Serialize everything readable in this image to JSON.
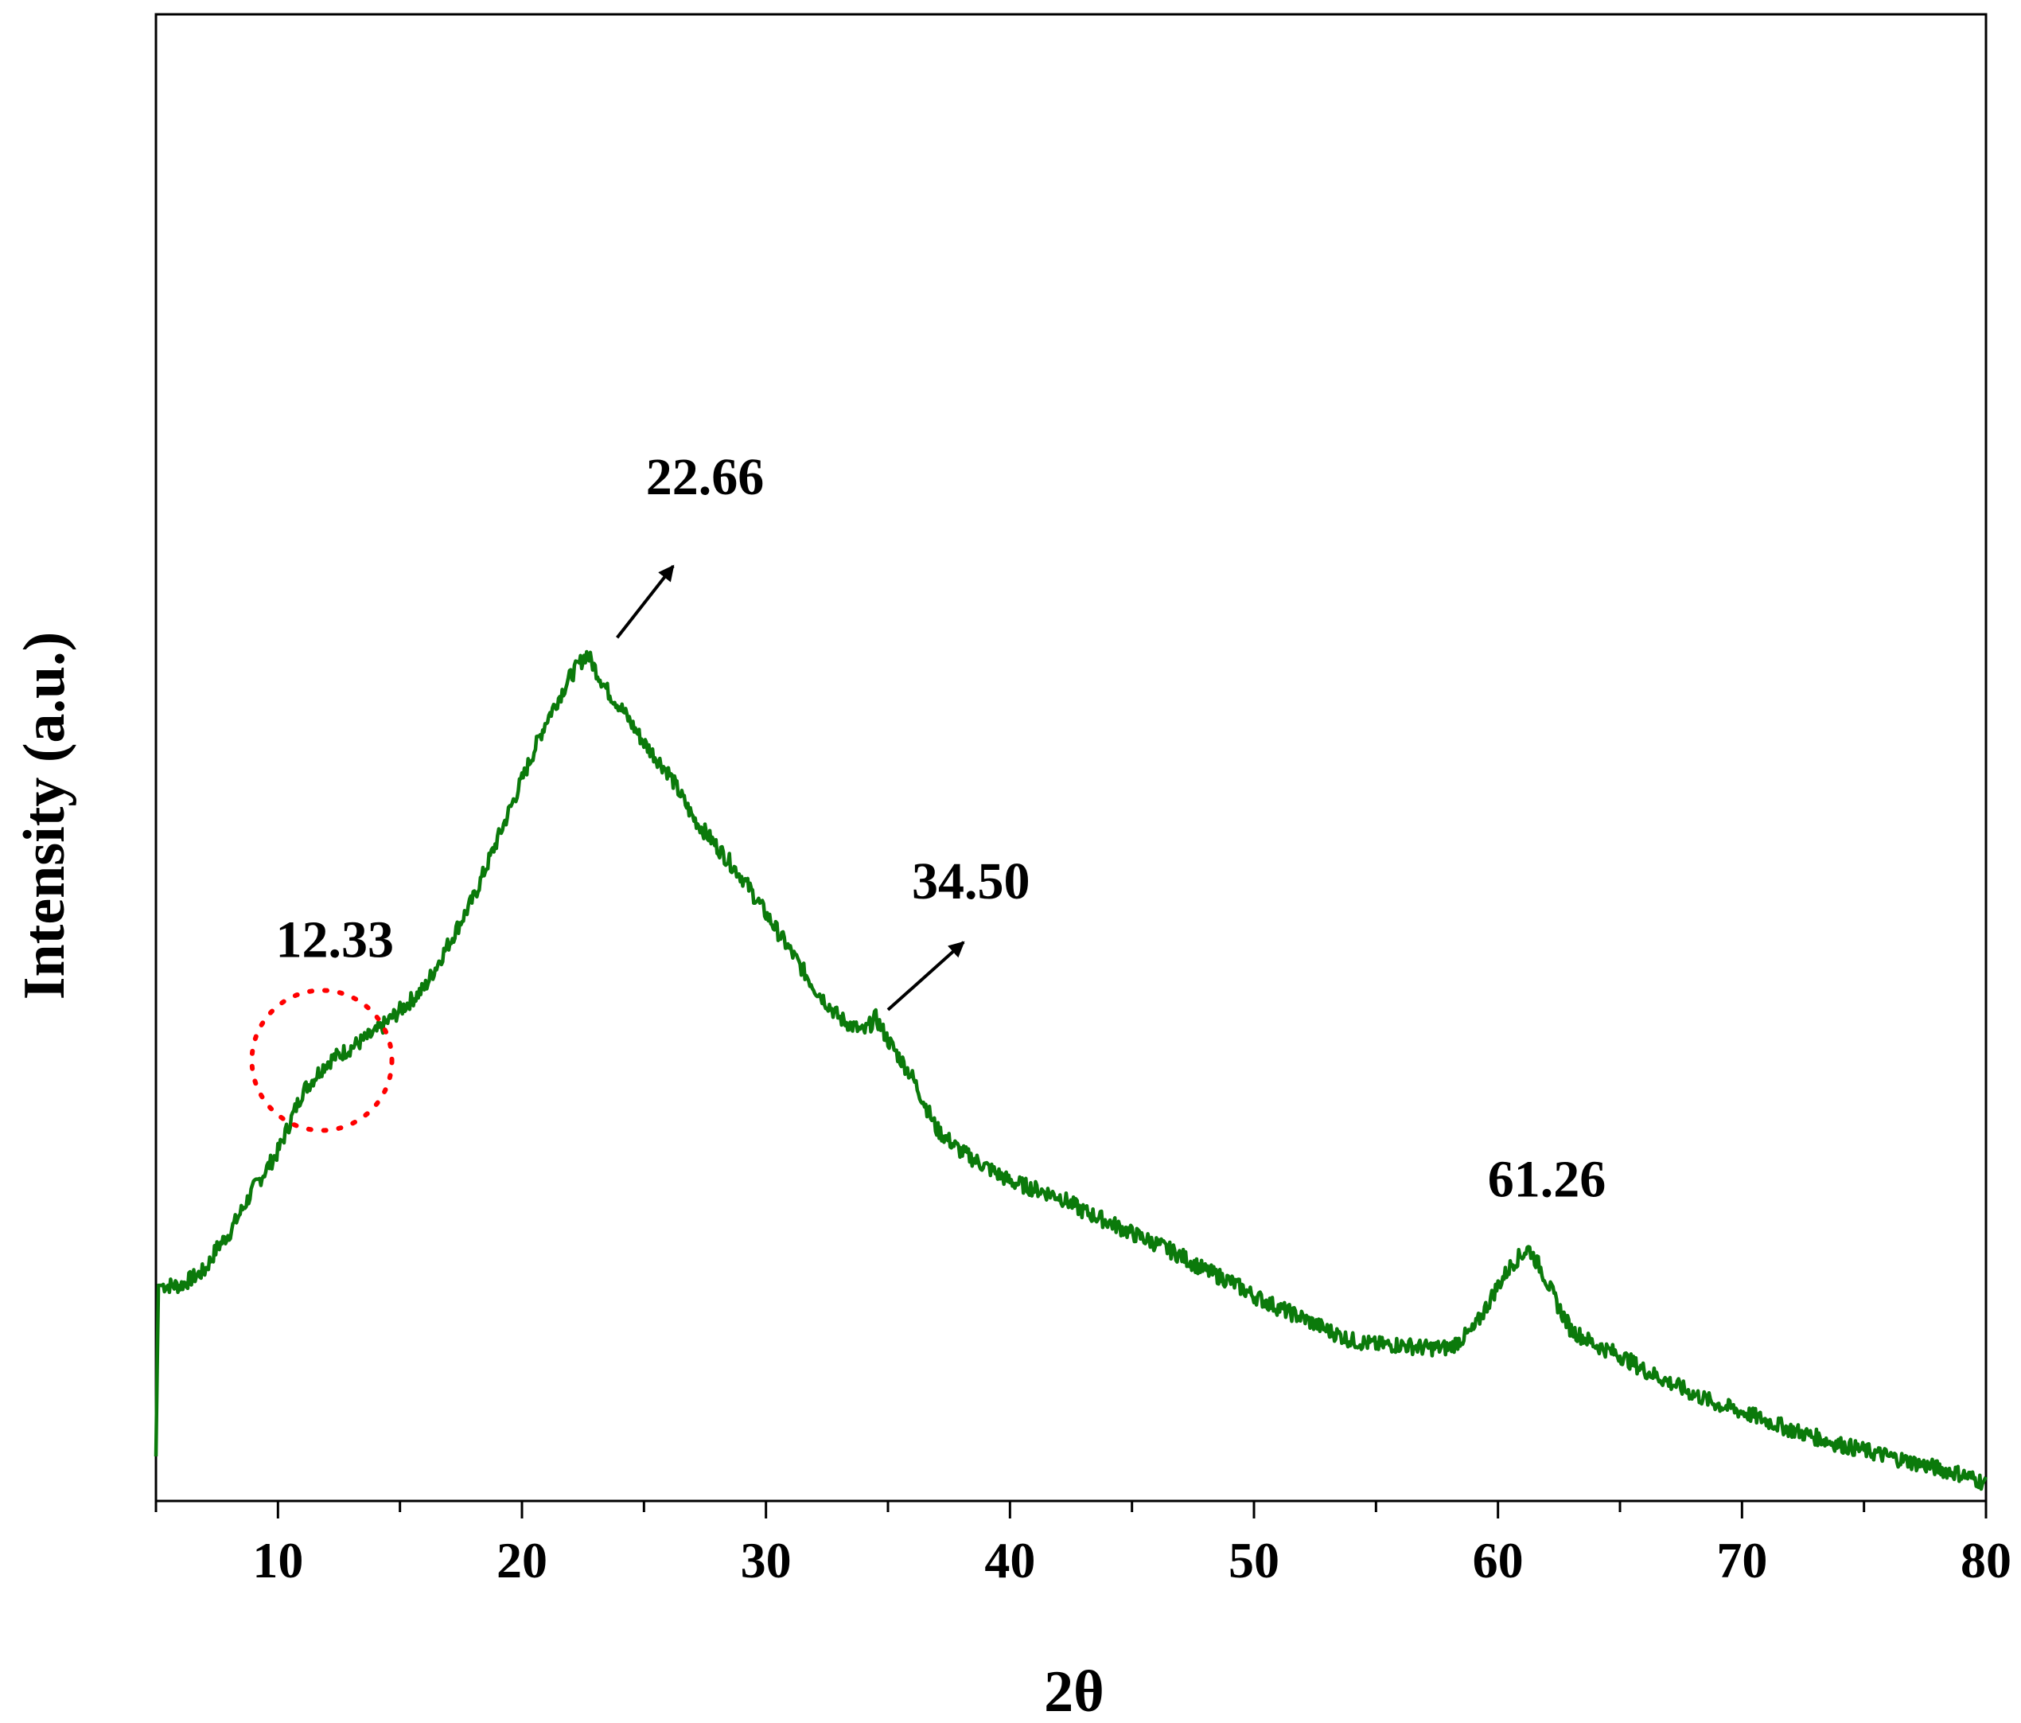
{
  "chart_data": {
    "type": "line",
    "title": "",
    "xlabel": "2θ",
    "ylabel": "Intensity (a.u.)",
    "xlim": [
      5,
      80
    ],
    "ylim": [
      0,
      100
    ],
    "x_ticks": [
      10,
      20,
      30,
      40,
      50,
      60,
      70,
      80
    ],
    "y_ticks_shown": false,
    "grid": false,
    "legend": "none",
    "colors": {
      "series": "#0b7a0b",
      "highlight_circle": "#ff0000",
      "arrow": "#000000",
      "axes": "#000000"
    },
    "series": [
      {
        "x": [
          5.0,
          5.1,
          6,
          7,
          7.5,
          8,
          9,
          10,
          10.5,
          11,
          12,
          13,
          14,
          15,
          16,
          17,
          18,
          19,
          20,
          21,
          22,
          22.66,
          23.5,
          24,
          25,
          26,
          27,
          28,
          29,
          30,
          31,
          32,
          33,
          34,
          34.5,
          35,
          36,
          37,
          38,
          39,
          40,
          41,
          42,
          43,
          44,
          45,
          46,
          47,
          48,
          49,
          50,
          51,
          52,
          53,
          54,
          55,
          56,
          57,
          58,
          59,
          60,
          60.6,
          61.26,
          61.8,
          62.5,
          63,
          64,
          65,
          66,
          67,
          68,
          69,
          70,
          71,
          72,
          73,
          74,
          75,
          76,
          77,
          78,
          79,
          80
        ],
        "y": [
          3,
          14.5,
          14.5,
          15.5,
          17,
          18,
          21,
          23.5,
          25.5,
          27.5,
          29.5,
          30.5,
          31.5,
          33,
          34.5,
          37.5,
          40.5,
          44.5,
          48.5,
          52.5,
          55.5,
          57,
          54.5,
          53.5,
          51,
          49,
          46,
          44,
          42,
          39.5,
          37,
          34.5,
          32.5,
          31.5,
          32.5,
          31,
          28.5,
          25,
          23.5,
          22.5,
          21.5,
          21,
          20.5,
          19.5,
          18.8,
          18,
          17.3,
          16.5,
          15.5,
          14.8,
          13.8,
          13,
          12.3,
          11.5,
          10.8,
          10.5,
          10.5,
          10.3,
          10.3,
          11.5,
          14.5,
          16,
          17,
          15.5,
          13,
          11.5,
          10.5,
          9.8,
          8.8,
          8,
          7.2,
          6.5,
          6,
          5.4,
          4.8,
          4.3,
          3.8,
          3.4,
          3,
          2.6,
          2.2,
          1.8,
          1.2
        ]
      }
    ],
    "annotations": [
      {
        "text": "12.33",
        "x": 12.33,
        "marker": "dotted red circle"
      },
      {
        "text": "22.66",
        "x": 22.66,
        "marker": "arrow"
      },
      {
        "text": "34.50",
        "x": 34.5,
        "marker": "arrow"
      },
      {
        "text": "61.26",
        "x": 61.26,
        "marker": "none"
      }
    ]
  }
}
